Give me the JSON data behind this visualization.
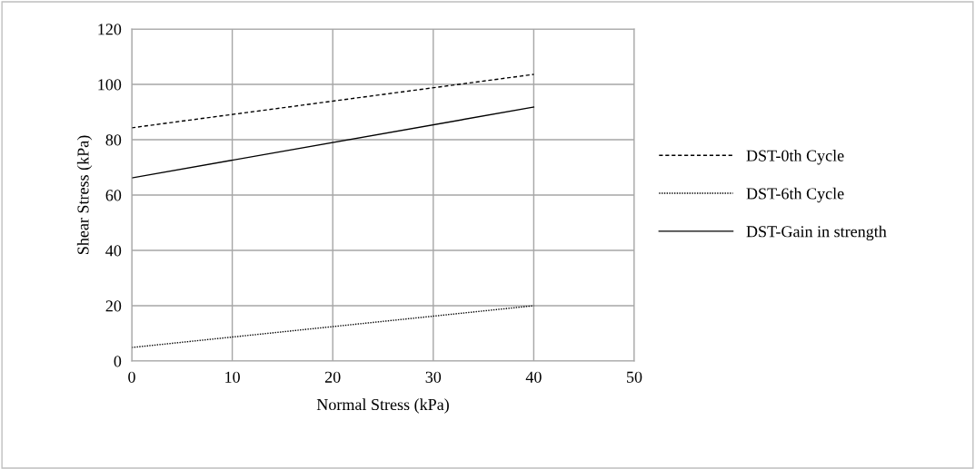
{
  "chart_data": {
    "type": "line",
    "xlabel": "Normal Stress (kPa)",
    "ylabel": "Shear Stress (kPa)",
    "xlim": [
      0,
      50
    ],
    "xticks": [
      0,
      10,
      20,
      30,
      40,
      50
    ],
    "ylim": [
      0,
      120
    ],
    "yticks": [
      0,
      20,
      40,
      60,
      80,
      100,
      120
    ],
    "grid": true,
    "legend": "right",
    "marker": "none",
    "x": [
      0,
      40
    ],
    "series": [
      {
        "name": "DST-0th Cycle",
        "color": "#000000",
        "line_style": "dashed",
        "values": [
          84.3,
          103.6
        ]
      },
      {
        "name": "DST-6th Cycle",
        "color": "#000000",
        "line_style": "dotted",
        "values": [
          4.9,
          20
        ]
      },
      {
        "name": "DST-Gain in strength",
        "color": "#000000",
        "line_style": "solid",
        "values": [
          66.2,
          91.8
        ]
      }
    ]
  }
}
